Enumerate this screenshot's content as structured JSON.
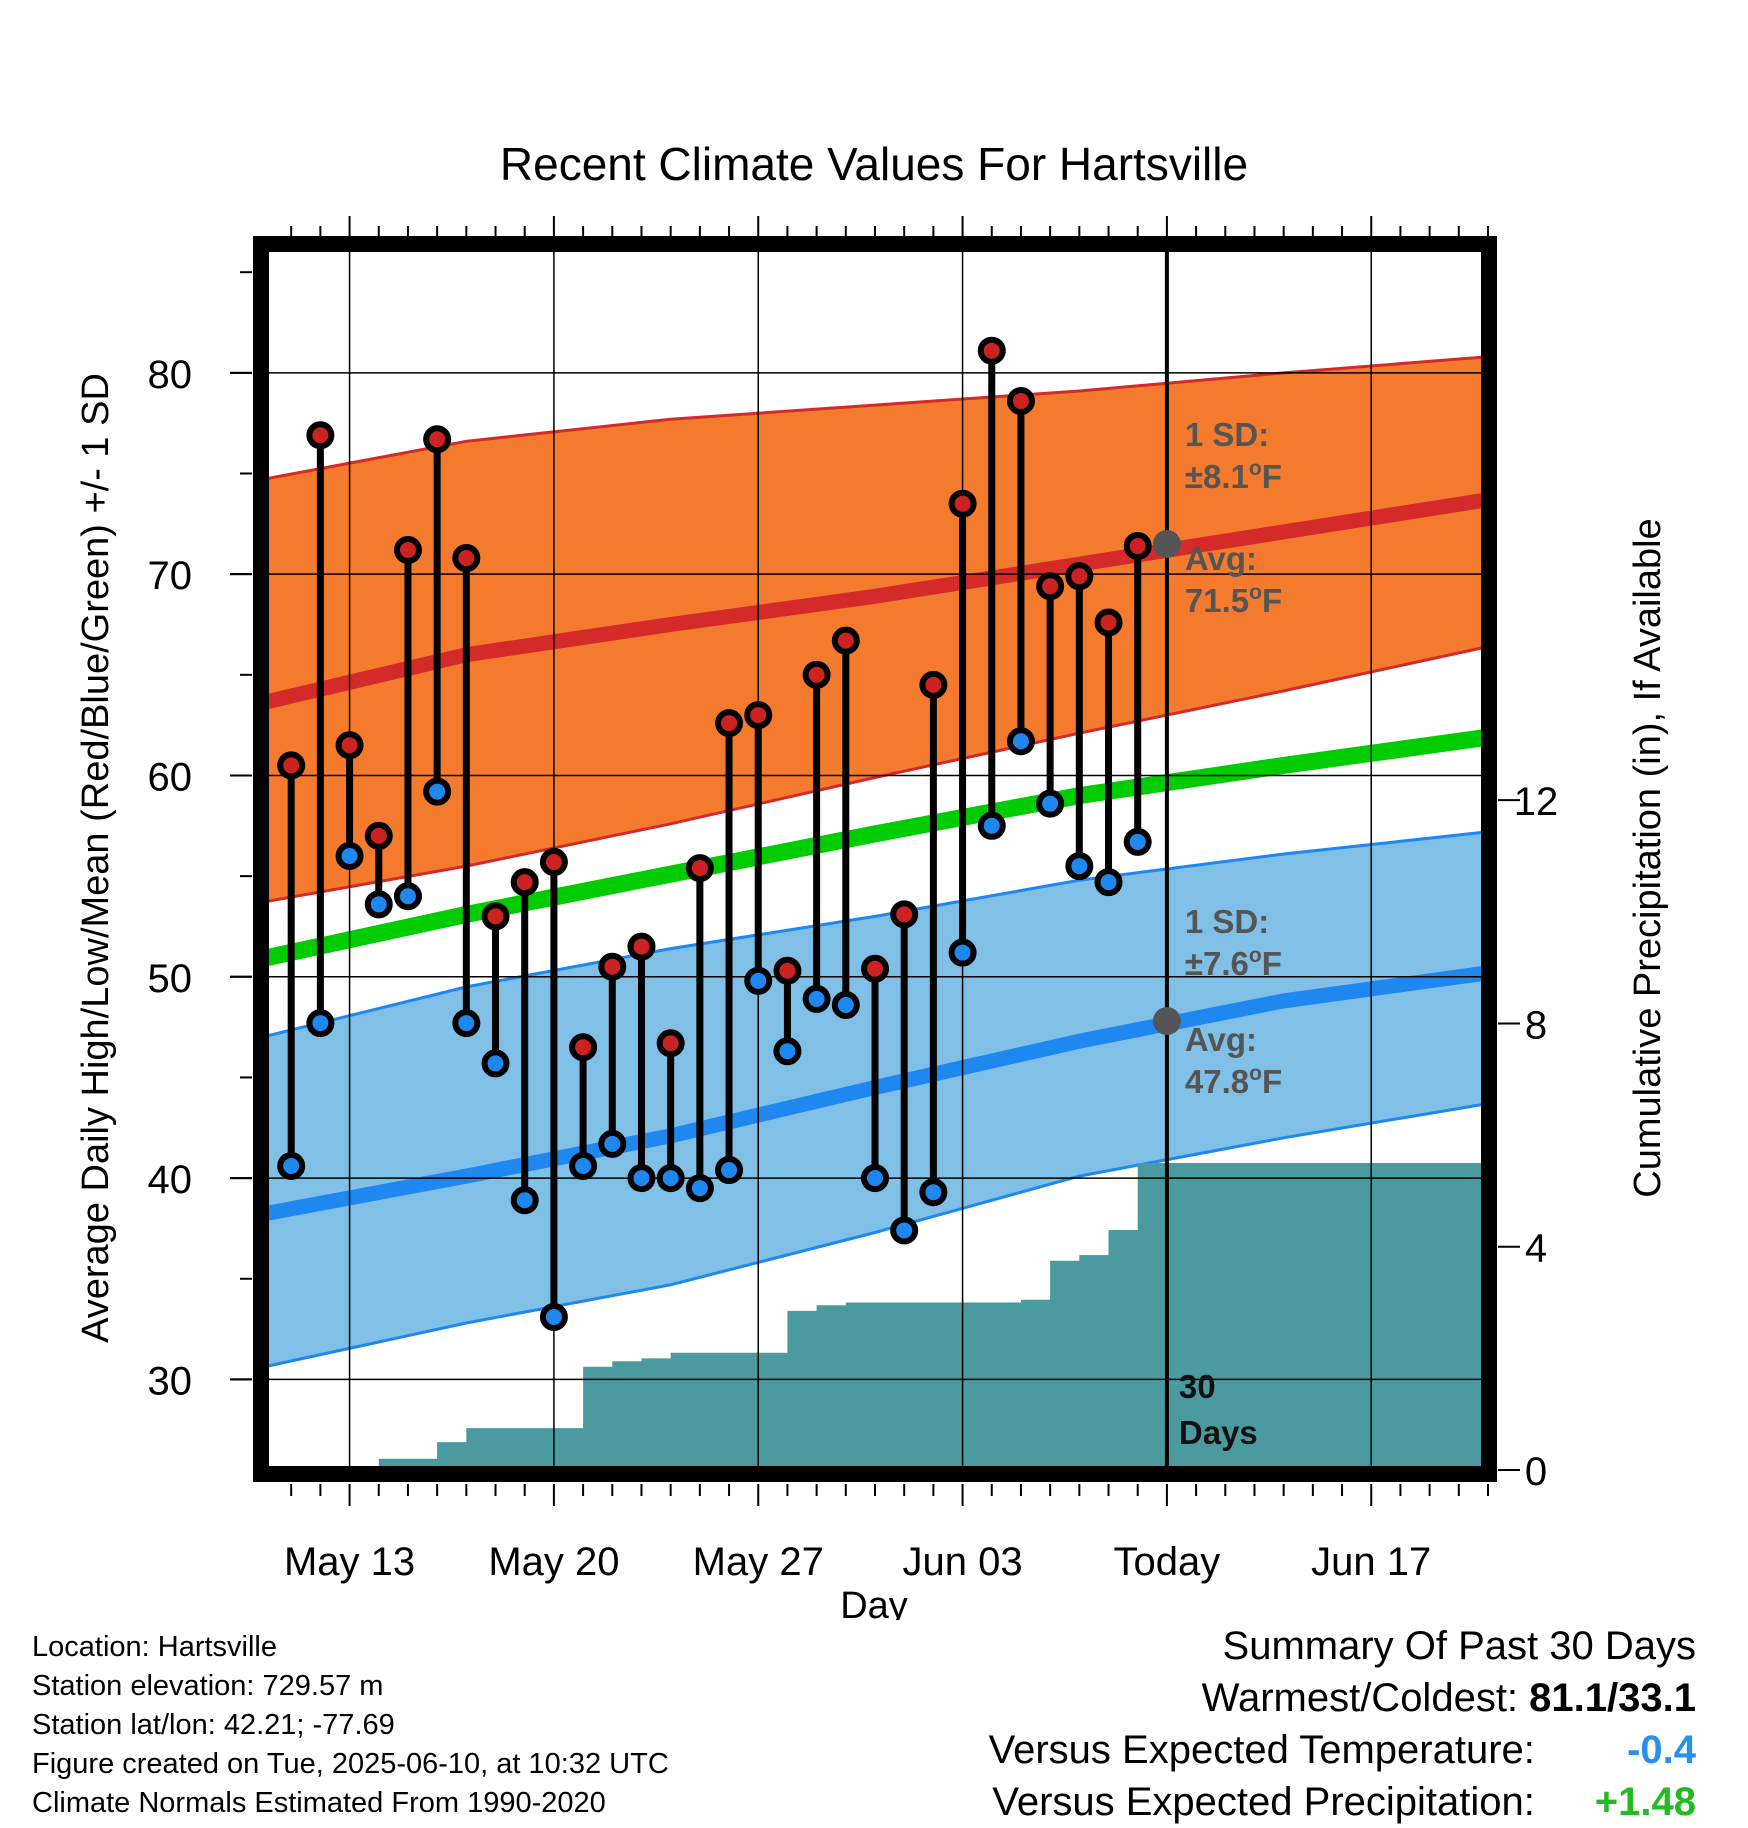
{
  "chart_data": {
    "type": "line",
    "title": "Recent Climate Values For Hartsville",
    "xlabel": "Day",
    "ylabel": "Average Daily High/Low/Mean (Red/Blue/Green) +/- 1 SD",
    "y2label": "Cumulative Precipitation (in), If Available",
    "x_tick_labels": [
      "May 13",
      "May 20",
      "May 27",
      "Jun 03",
      "Today",
      "Jun 17"
    ],
    "x_ticks": [
      "2025-05-13",
      "2025-05-20",
      "2025-05-27",
      "2025-06-03",
      "2025-06-10",
      "2025-06-17"
    ],
    "xlim": [
      "2025-05-10",
      "2025-06-21"
    ],
    "ylim": [
      25.5,
      86.5
    ],
    "y_ticks": [
      30,
      40,
      50,
      60,
      70,
      80
    ],
    "y2lim": [
      0,
      22
    ],
    "y2_ticks": [
      0,
      4,
      8,
      12
    ],
    "grid": true,
    "today_marker": {
      "label_line1": "30",
      "label_line2": "Days",
      "date": "2025-06-10"
    },
    "daily": {
      "dates": [
        "2025-05-11",
        "2025-05-12",
        "2025-05-13",
        "2025-05-14",
        "2025-05-15",
        "2025-05-16",
        "2025-05-17",
        "2025-05-18",
        "2025-05-19",
        "2025-05-20",
        "2025-05-21",
        "2025-05-22",
        "2025-05-23",
        "2025-05-24",
        "2025-05-25",
        "2025-05-26",
        "2025-05-27",
        "2025-05-28",
        "2025-05-29",
        "2025-05-30",
        "2025-05-31",
        "2025-06-01",
        "2025-06-02",
        "2025-06-03",
        "2025-06-04",
        "2025-06-05",
        "2025-06-06",
        "2025-06-07",
        "2025-06-08",
        "2025-06-09"
      ],
      "high": [
        60.5,
        76.9,
        61.5,
        57.0,
        71.2,
        76.7,
        70.8,
        53.0,
        54.7,
        55.7,
        46.5,
        50.5,
        51.5,
        46.7,
        55.4,
        62.6,
        63.0,
        50.3,
        65.0,
        66.7,
        50.4,
        53.1,
        64.5,
        73.5,
        81.1,
        78.6,
        69.4,
        69.9,
        67.6,
        71.4
      ],
      "low": [
        40.6,
        47.7,
        56.0,
        53.6,
        54.0,
        59.2,
        47.7,
        45.7,
        38.9,
        33.1,
        40.6,
        41.7,
        40.0,
        40.0,
        39.5,
        40.4,
        49.8,
        46.3,
        48.9,
        48.6,
        40.0,
        37.4,
        39.3,
        51.2,
        57.5,
        61.7,
        58.6,
        55.5,
        54.7,
        56.7
      ]
    },
    "normals": {
      "dates": [
        "2025-05-10",
        "2025-05-17",
        "2025-05-24",
        "2025-05-31",
        "2025-06-07",
        "2025-06-14",
        "2025-06-21"
      ],
      "high_avg": [
        63.6,
        66.0,
        67.5,
        68.9,
        70.5,
        72.1,
        73.7
      ],
      "high_upper": [
        74.7,
        76.6,
        77.7,
        78.4,
        79.1,
        80.0,
        80.8
      ],
      "high_lower": [
        53.7,
        55.5,
        57.6,
        59.9,
        62.1,
        64.2,
        66.4
      ],
      "low_avg": [
        38.2,
        40.1,
        42.1,
        44.5,
        46.8,
        48.8,
        50.2
      ],
      "low_upper": [
        47.0,
        49.5,
        51.4,
        53.0,
        54.8,
        56.1,
        57.2
      ],
      "low_lower": [
        30.6,
        32.8,
        34.7,
        37.3,
        40.1,
        42.0,
        43.7
      ],
      "mean_avg": [
        50.9,
        53.1,
        55.1,
        57.1,
        59.0,
        60.5,
        61.9
      ]
    },
    "precip": {
      "dates": [
        "2025-05-13",
        "2025-05-14",
        "2025-05-15",
        "2025-05-16",
        "2025-05-17",
        "2025-05-18",
        "2025-05-19",
        "2025-05-20",
        "2025-05-21",
        "2025-05-22",
        "2025-05-23",
        "2025-05-24",
        "2025-05-25",
        "2025-05-26",
        "2025-05-27",
        "2025-05-28",
        "2025-05-29",
        "2025-05-30",
        "2025-05-31",
        "2025-06-01",
        "2025-06-02",
        "2025-06-03",
        "2025-06-04",
        "2025-06-05",
        "2025-06-06",
        "2025-06-07",
        "2025-06-08",
        "2025-06-09",
        "2025-06-21"
      ],
      "cumulative": [
        0.05,
        0.2,
        0.2,
        0.5,
        0.75,
        0.75,
        0.75,
        0.75,
        1.85,
        1.95,
        2.0,
        2.1,
        2.1,
        2.1,
        2.1,
        2.85,
        2.95,
        3.0,
        3.0,
        3.0,
        3.0,
        3.0,
        3.0,
        3.05,
        3.75,
        3.85,
        4.3,
        5.5,
        5.5
      ]
    },
    "annotations": {
      "high_sd_label": "1 SD:",
      "high_sd_value": "±8.1",
      "high_avg_label": "Avg:",
      "high_avg_value": "71.5",
      "low_sd_label": "1 SD:",
      "low_sd_value": "±7.6",
      "low_avg_label": "Avg:",
      "low_avg_value": "47.8",
      "degree_symbol": "o",
      "unit": "F",
      "today_high_avg": 71.5,
      "today_low_avg": 47.8
    },
    "colors": {
      "high_band": "#f47a2e",
      "high_line": "#d42a2a",
      "low_band": "#80bfe6",
      "low_line": "#1e88f0",
      "mean_line": "#00cc00",
      "precip": "#4a9aa0",
      "high_dot": "#cc2222",
      "low_dot": "#1e88f0"
    }
  },
  "info": {
    "location": "Location: Hartsville",
    "elevation": "Station elevation: 729.57 m",
    "latlon": "Station lat/lon: 42.21; -77.69",
    "created": "Figure created on Tue, 2025-06-10, at 10:32 UTC",
    "normals": "Climate Normals Estimated From 1990-2020"
  },
  "summary": {
    "title": "Summary Of Past 30 Days",
    "warmest_label": "Warmest/Coldest:",
    "warmest_value": "81.1/33.1",
    "temp_label": "Versus Expected Temperature:",
    "temp_value": "-0.4",
    "temp_color": "#2a90ee",
    "precip_label": "Versus Expected Precipitation:",
    "precip_value": "+1.48",
    "precip_color": "#22bb22"
  }
}
